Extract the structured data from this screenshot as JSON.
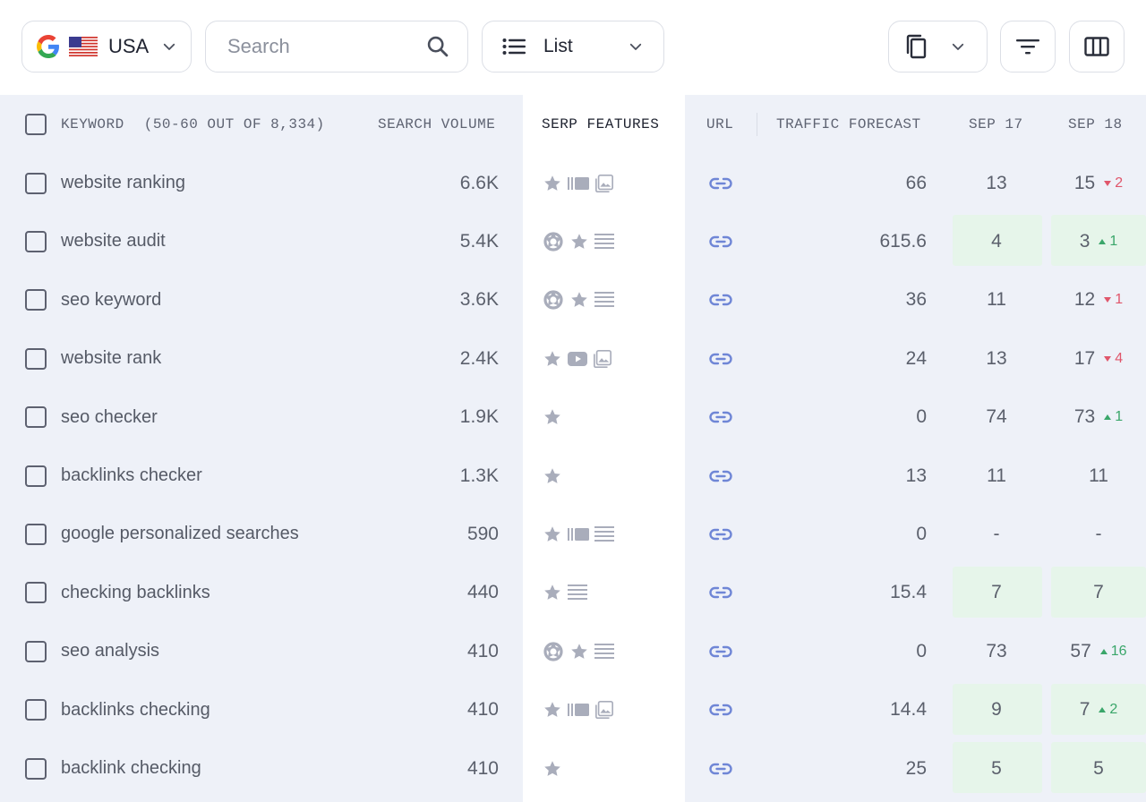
{
  "toolbar": {
    "country_label": "USA",
    "search_placeholder": "Search",
    "view_label": "List"
  },
  "header": {
    "keyword": "KEYWORD",
    "keyword_range": "(50-60 out of 8,334)",
    "search_volume": "SEARCH VOLUME",
    "serp_features": "SERP FEATURES",
    "url": "URL",
    "traffic_forecast": "TRAFFIC FORECAST",
    "sep17": "SEP 17",
    "sep18": "SEP 18"
  },
  "colors": {
    "accent_link": "#6f86d6",
    "positive_bg": "#e6f5ea",
    "up": "#3aa66a",
    "down": "#e0566b"
  },
  "rows": [
    {
      "keyword": "website ranking",
      "volume": "6.6K",
      "features": [
        "star-icon",
        "sitelinks-icon",
        "image-icon"
      ],
      "traffic": "66",
      "sep17": "13",
      "sep18": "15",
      "delta": "2",
      "dir": "down",
      "hl17": false,
      "hl18": false
    },
    {
      "keyword": "website audit",
      "volume": "5.4K",
      "features": [
        "knowledge-panel-icon",
        "star-icon",
        "list-icon"
      ],
      "traffic": "615.6",
      "sep17": "4",
      "sep18": "3",
      "delta": "1",
      "dir": "up",
      "hl17": true,
      "hl18": true
    },
    {
      "keyword": "seo keyword",
      "volume": "3.6K",
      "features": [
        "knowledge-panel-icon",
        "star-icon",
        "list-icon"
      ],
      "traffic": "36",
      "sep17": "11",
      "sep18": "12",
      "delta": "1",
      "dir": "down",
      "hl17": false,
      "hl18": false
    },
    {
      "keyword": "website rank",
      "volume": "2.4K",
      "features": [
        "star-icon",
        "video-icon",
        "image-icon"
      ],
      "traffic": "24",
      "sep17": "13",
      "sep18": "17",
      "delta": "4",
      "dir": "down",
      "hl17": false,
      "hl18": false
    },
    {
      "keyword": "seo checker",
      "volume": "1.9K",
      "features": [
        "star-icon"
      ],
      "traffic": "0",
      "sep17": "74",
      "sep18": "73",
      "delta": "1",
      "dir": "up",
      "hl17": false,
      "hl18": false
    },
    {
      "keyword": "backlinks checker",
      "volume": "1.3K",
      "features": [
        "star-icon"
      ],
      "traffic": "13",
      "sep17": "11",
      "sep18": "11",
      "delta": "",
      "dir": "",
      "hl17": false,
      "hl18": false
    },
    {
      "keyword": "google personalized searches",
      "volume": "590",
      "features": [
        "star-icon",
        "sitelinks-icon",
        "list-icon"
      ],
      "traffic": "0",
      "sep17": "-",
      "sep18": "-",
      "delta": "",
      "dir": "",
      "hl17": false,
      "hl18": false
    },
    {
      "keyword": "checking backlinks",
      "volume": "440",
      "features": [
        "star-icon",
        "list-icon"
      ],
      "traffic": "15.4",
      "sep17": "7",
      "sep18": "7",
      "delta": "",
      "dir": "",
      "hl17": true,
      "hl18": true
    },
    {
      "keyword": "seo analysis",
      "volume": "410",
      "features": [
        "knowledge-panel-icon",
        "star-icon",
        "list-icon"
      ],
      "traffic": "0",
      "sep17": "73",
      "sep18": "57",
      "delta": "16",
      "dir": "up",
      "hl17": false,
      "hl18": false
    },
    {
      "keyword": "backlinks checking",
      "volume": "410",
      "features": [
        "star-icon",
        "sitelinks-icon",
        "image-icon"
      ],
      "traffic": "14.4",
      "sep17": "9",
      "sep18": "7",
      "delta": "2",
      "dir": "up",
      "hl17": true,
      "hl18": true
    },
    {
      "keyword": "backlink checking",
      "volume": "410",
      "features": [
        "star-icon"
      ],
      "traffic": "25",
      "sep17": "5",
      "sep18": "5",
      "delta": "",
      "dir": "",
      "hl17": true,
      "hl18": true
    }
  ]
}
